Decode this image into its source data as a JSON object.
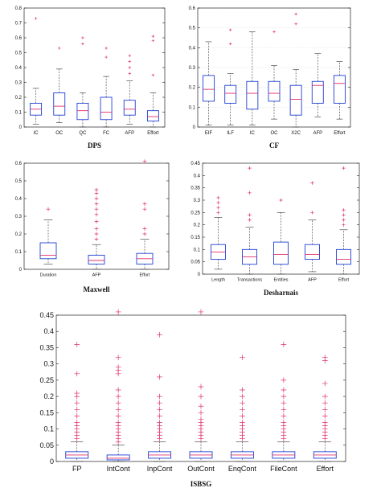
{
  "figure": {
    "background": "#ffffff"
  },
  "style": {
    "box_color": "#1f3fd6",
    "median_color": "#e0306a",
    "outlier_color": "#e0306a",
    "whisker_color": "#333333"
  },
  "chart_data": [
    {
      "type": "box",
      "title": "DPS",
      "ylim": [
        0,
        0.8
      ],
      "yticks": [
        "0",
        "0.1",
        "0.2",
        "0.3",
        "0.4",
        "0.5",
        "0.6",
        "0.7",
        "0.8"
      ],
      "grid": false,
      "boxes": [
        {
          "label": "IC",
          "min": 0.02,
          "q1": 0.08,
          "median": 0.12,
          "q3": 0.16,
          "max": 0.26,
          "outliers": [
            0.73
          ]
        },
        {
          "label": "OC",
          "min": 0.03,
          "q1": 0.08,
          "median": 0.14,
          "q3": 0.23,
          "max": 0.39,
          "outliers": [
            0.53
          ]
        },
        {
          "label": "QC",
          "min": 0.0,
          "q1": 0.05,
          "median": 0.11,
          "q3": 0.16,
          "max": 0.23,
          "outliers": [
            0.56,
            0.6
          ]
        },
        {
          "label": "FC",
          "min": 0.0,
          "q1": 0.05,
          "median": 0.1,
          "q3": 0.2,
          "max": 0.34,
          "outliers": [
            0.47,
            0.53
          ]
        },
        {
          "label": "AFP",
          "min": 0.02,
          "q1": 0.08,
          "median": 0.12,
          "q3": 0.18,
          "max": 0.31,
          "outliers": [
            0.36,
            0.4,
            0.44,
            0.48
          ]
        },
        {
          "label": "Effort",
          "min": 0.0,
          "q1": 0.04,
          "median": 0.07,
          "q3": 0.11,
          "max": 0.23,
          "outliers": [
            0.35,
            0.58,
            0.61
          ]
        }
      ]
    },
    {
      "type": "box",
      "title": "CF",
      "ylim": [
        0,
        0.6
      ],
      "yticks": [
        "0",
        "0.1",
        "0.2",
        "0.3",
        "0.4",
        "0.5",
        "0.6"
      ],
      "grid": true,
      "boxes": [
        {
          "label": "EIF",
          "min": 0.01,
          "q1": 0.13,
          "median": 0.19,
          "q3": 0.26,
          "max": 0.43,
          "outliers": []
        },
        {
          "label": "ILF",
          "min": 0.01,
          "q1": 0.12,
          "median": 0.17,
          "q3": 0.21,
          "max": 0.27,
          "outliers": [
            0.42,
            0.49
          ]
        },
        {
          "label": "IC",
          "min": 0.01,
          "q1": 0.09,
          "median": 0.17,
          "q3": 0.23,
          "max": 0.48,
          "outliers": []
        },
        {
          "label": "OC",
          "min": 0.04,
          "q1": 0.13,
          "median": 0.17,
          "q3": 0.23,
          "max": 0.31,
          "outliers": [
            0.48
          ]
        },
        {
          "label": "X2C",
          "min": 0.0,
          "q1": 0.06,
          "median": 0.14,
          "q3": 0.21,
          "max": 0.29,
          "outliers": [
            0.52,
            0.57
          ]
        },
        {
          "label": "AFP",
          "min": 0.05,
          "q1": 0.12,
          "median": 0.21,
          "q3": 0.23,
          "max": 0.37,
          "outliers": []
        },
        {
          "label": "Effort",
          "min": 0.04,
          "q1": 0.12,
          "median": 0.22,
          "q3": 0.26,
          "max": 0.33,
          "outliers": []
        }
      ]
    },
    {
      "type": "box",
      "title": "Maxwell",
      "ylim": [
        0,
        0.6
      ],
      "yticks": [
        "0",
        "0.1",
        "0.2",
        "0.3",
        "0.4",
        "0.5",
        "0.6"
      ],
      "grid": false,
      "boxes": [
        {
          "label": "Duration",
          "min": 0.03,
          "q1": 0.06,
          "median": 0.08,
          "q3": 0.15,
          "max": 0.28,
          "outliers": [
            0.34
          ]
        },
        {
          "label": "AFP",
          "min": 0.0,
          "q1": 0.03,
          "median": 0.05,
          "q3": 0.08,
          "max": 0.14,
          "outliers": [
            0.17,
            0.2,
            0.23,
            0.27,
            0.31,
            0.34,
            0.37,
            0.4,
            0.43,
            0.45
          ]
        },
        {
          "label": "Effort",
          "min": 0.0,
          "q1": 0.03,
          "median": 0.06,
          "q3": 0.09,
          "max": 0.17,
          "outliers": [
            0.2,
            0.23,
            0.34,
            0.37,
            0.61
          ]
        }
      ]
    },
    {
      "type": "box",
      "title": "Desharnais",
      "ylim": [
        0,
        0.45
      ],
      "yticks": [
        "0",
        "0.05",
        "0.1",
        "0.15",
        "0.2",
        "0.25",
        "0.3",
        "0.35",
        "0.4",
        "0.45"
      ],
      "grid": false,
      "boxes": [
        {
          "label": "Length",
          "min": 0.02,
          "q1": 0.06,
          "median": 0.09,
          "q3": 0.12,
          "max": 0.23,
          "outliers": [
            0.25,
            0.27,
            0.29,
            0.31
          ]
        },
        {
          "label": "Transactions",
          "min": 0.0,
          "q1": 0.04,
          "median": 0.07,
          "q3": 0.1,
          "max": 0.19,
          "outliers": [
            0.22,
            0.24,
            0.33,
            0.43
          ]
        },
        {
          "label": "Entities",
          "min": 0.0,
          "q1": 0.04,
          "median": 0.08,
          "q3": 0.13,
          "max": 0.25,
          "outliers": [
            0.3
          ]
        },
        {
          "label": "AFP",
          "min": 0.01,
          "q1": 0.06,
          "median": 0.08,
          "q3": 0.12,
          "max": 0.22,
          "outliers": [
            0.25,
            0.37
          ]
        },
        {
          "label": "Effort",
          "min": 0.0,
          "q1": 0.04,
          "median": 0.06,
          "q3": 0.1,
          "max": 0.18,
          "outliers": [
            0.2,
            0.22,
            0.24,
            0.26,
            0.43
          ]
        }
      ]
    },
    {
      "type": "box",
      "title": "ISBSG",
      "ylim": [
        0,
        0.45
      ],
      "yticks": [
        "0",
        "0.05",
        "0.1",
        "0.15",
        "0.2",
        "0.25",
        "0.3",
        "0.35",
        "0.4",
        "0.45"
      ],
      "grid": false,
      "boxes": [
        {
          "label": "FP",
          "min": 0.0,
          "q1": 0.01,
          "median": 0.02,
          "q3": 0.03,
          "max": 0.06,
          "outliers": [
            0.07,
            0.08,
            0.09,
            0.1,
            0.11,
            0.12,
            0.14,
            0.16,
            0.18,
            0.2,
            0.21,
            0.27,
            0.36
          ]
        },
        {
          "label": "IntCont",
          "min": 0.0,
          "q1": 0.005,
          "median": 0.01,
          "q3": 0.02,
          "max": 0.05,
          "outliers": [
            0.06,
            0.07,
            0.08,
            0.09,
            0.1,
            0.11,
            0.12,
            0.14,
            0.16,
            0.18,
            0.2,
            0.22,
            0.27,
            0.28,
            0.29,
            0.32,
            0.46
          ]
        },
        {
          "label": "InpCont",
          "min": 0.0,
          "q1": 0.01,
          "median": 0.02,
          "q3": 0.03,
          "max": 0.06,
          "outliers": [
            0.07,
            0.08,
            0.09,
            0.1,
            0.11,
            0.12,
            0.14,
            0.16,
            0.18,
            0.2,
            0.26,
            0.39
          ]
        },
        {
          "label": "OutCont",
          "min": 0.0,
          "q1": 0.01,
          "median": 0.02,
          "q3": 0.03,
          "max": 0.06,
          "outliers": [
            0.07,
            0.08,
            0.09,
            0.1,
            0.11,
            0.12,
            0.13,
            0.15,
            0.17,
            0.2,
            0.23,
            0.46
          ]
        },
        {
          "label": "EnqCont",
          "min": 0.0,
          "q1": 0.01,
          "median": 0.02,
          "q3": 0.03,
          "max": 0.06,
          "outliers": [
            0.07,
            0.08,
            0.09,
            0.1,
            0.11,
            0.12,
            0.14,
            0.16,
            0.18,
            0.2,
            0.22,
            0.32
          ]
        },
        {
          "label": "FileCont",
          "min": 0.0,
          "q1": 0.01,
          "median": 0.02,
          "q3": 0.03,
          "max": 0.06,
          "outliers": [
            0.07,
            0.08,
            0.09,
            0.1,
            0.11,
            0.12,
            0.14,
            0.16,
            0.18,
            0.2,
            0.22,
            0.25,
            0.36
          ]
        },
        {
          "label": "Effort",
          "min": 0.0,
          "q1": 0.01,
          "median": 0.02,
          "q3": 0.03,
          "max": 0.06,
          "outliers": [
            0.07,
            0.08,
            0.09,
            0.1,
            0.11,
            0.12,
            0.14,
            0.16,
            0.18,
            0.2,
            0.24,
            0.31,
            0.32
          ]
        }
      ]
    }
  ]
}
